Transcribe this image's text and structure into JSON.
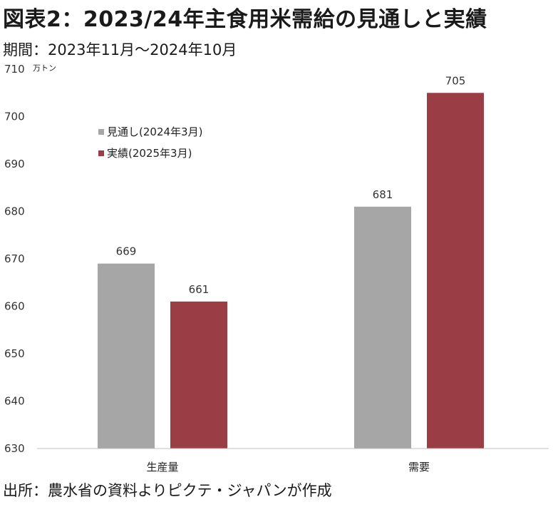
{
  "title": "図表2：2023/24年主食用米需給の見通しと実績",
  "subtitle": "期間：2023年11月～2024年10月",
  "source": "出所：農水省の資料よりピクテ・ジャパンが作成",
  "chart_data": {
    "type": "bar",
    "unit": "万トン",
    "categories": [
      "生産量",
      "需要"
    ],
    "series": [
      {
        "name": "見通し(2024年3月)",
        "color": "#a6a6a6",
        "values": [
          669,
          681
        ]
      },
      {
        "name": "実績(2025年3月)",
        "color": "#9b3d44",
        "values": [
          661,
          705
        ]
      }
    ],
    "ylim": [
      630,
      710
    ],
    "yticks": [
      630,
      640,
      650,
      660,
      670,
      680,
      690,
      700,
      710
    ],
    "legend": "top-left",
    "grid": false
  }
}
